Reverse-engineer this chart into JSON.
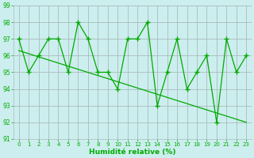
{
  "x": [
    0,
    1,
    2,
    3,
    4,
    5,
    6,
    7,
    8,
    9,
    10,
    11,
    12,
    13,
    14,
    15,
    16,
    17,
    18,
    19,
    20,
    21,
    22,
    23
  ],
  "y": [
    97,
    95,
    96,
    97,
    97,
    95,
    98,
    97,
    95,
    95,
    94,
    97,
    97,
    98,
    93,
    95,
    97,
    94,
    95,
    96,
    92,
    97,
    95,
    96
  ],
  "trend_x": [
    0,
    23
  ],
  "trend_y": [
    96.3,
    92.0
  ],
  "line_color": "#00aa00",
  "bg_color": "#cceeee",
  "grid_color": "#aabbbb",
  "xlabel": "Humidité relative (%)",
  "ylim": [
    91,
    99
  ],
  "xlim": [
    -0.5,
    23.5
  ],
  "yticks": [
    91,
    92,
    93,
    94,
    95,
    96,
    97,
    98,
    99
  ],
  "xticks": [
    0,
    1,
    2,
    3,
    4,
    5,
    6,
    7,
    8,
    9,
    10,
    11,
    12,
    13,
    14,
    15,
    16,
    17,
    18,
    19,
    20,
    21,
    22,
    23
  ]
}
